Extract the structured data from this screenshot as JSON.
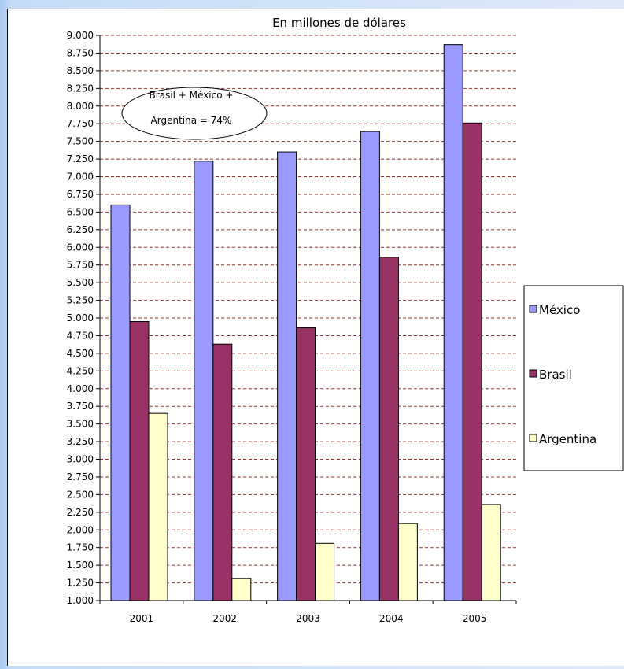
{
  "chart_data": {
    "type": "bar",
    "title": "En millones de dólares",
    "categories": [
      "2001",
      "2002",
      "2003",
      "2004",
      "2005"
    ],
    "series": [
      {
        "name": "México",
        "values": [
          6600,
          7220,
          7350,
          7640,
          8870
        ],
        "color": "#9999ff"
      },
      {
        "name": "Brasil",
        "values": [
          4950,
          4630,
          4860,
          5860,
          7760
        ],
        "color": "#993366"
      },
      {
        "name": "Argentina",
        "values": [
          3650,
          1310,
          1810,
          2090,
          2360
        ],
        "color": "#ffffcc"
      }
    ],
    "ylim": [
      1000,
      9000
    ],
    "ytick_step": 250,
    "ytick_labels": [
      "1.000",
      "1.250",
      "1.500",
      "1.750",
      "2.000",
      "2.250",
      "2.500",
      "2.750",
      "3.000",
      "3.250",
      "3.500",
      "3.750",
      "4.000",
      "4.250",
      "4.500",
      "4.750",
      "5.000",
      "5.250",
      "5.500",
      "5.750",
      "6.000",
      "6.250",
      "6.500",
      "6.750",
      "7.000",
      "7.250",
      "7.500",
      "7.750",
      "8.000",
      "8.250",
      "8.500",
      "8.750",
      "9.000"
    ],
    "grid": "dashed-horizontal",
    "legend_position": "right",
    "annotation": {
      "line1": "Brasil + México +",
      "line2": "Argentina = 74%"
    }
  }
}
